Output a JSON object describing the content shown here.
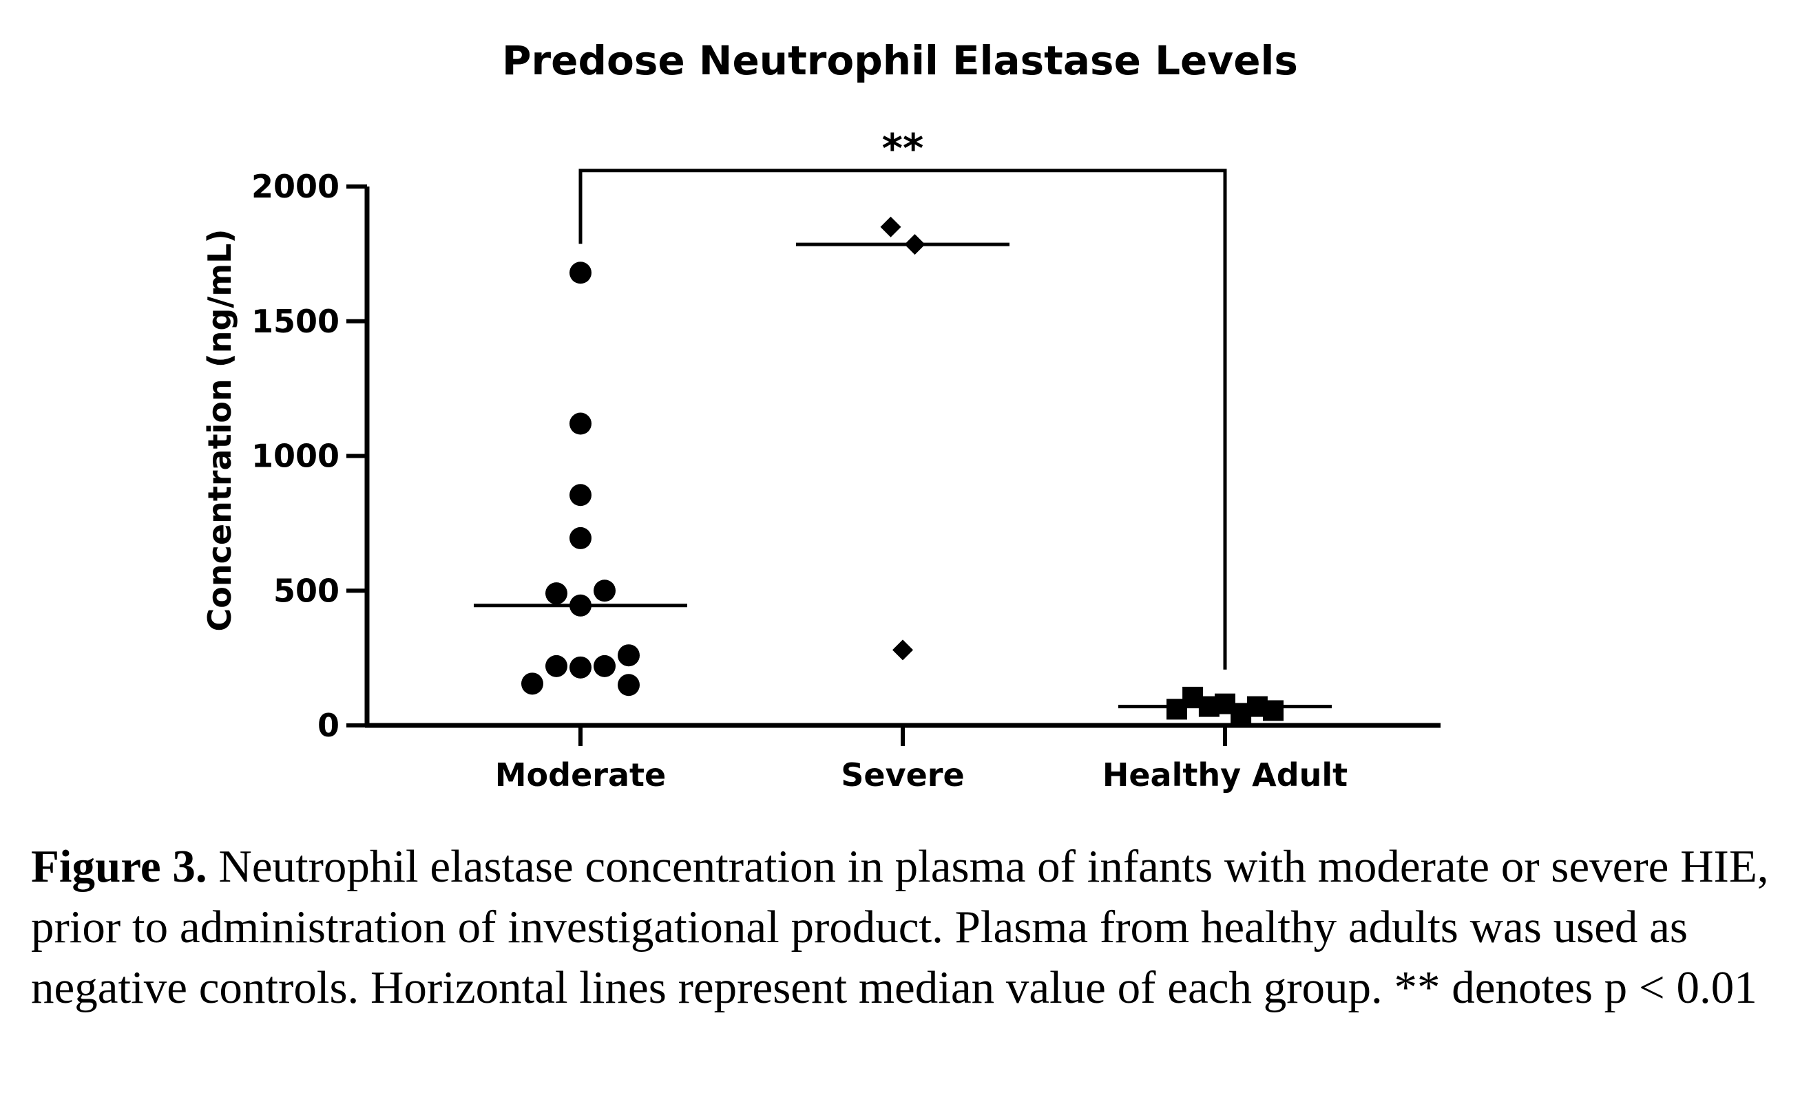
{
  "chart_data": {
    "type": "scatter",
    "title": "Predose Neutrophil Elastase  Levels",
    "ylabel": "Concentration (ng/mL)",
    "xlabel": "",
    "ylim": [
      0,
      2000
    ],
    "yticks": [
      0,
      500,
      1000,
      1500,
      2000
    ],
    "categories": [
      "Moderate",
      "Severe",
      "Healthy Adult"
    ],
    "groups": [
      {
        "category": "Moderate",
        "marker": "circle",
        "median": 445,
        "points": [
          {
            "offset": 0,
            "y": 1680
          },
          {
            "offset": 0,
            "y": 1120
          },
          {
            "offset": 0,
            "y": 855
          },
          {
            "offset": 0,
            "y": 695
          },
          {
            "offset": -0.5,
            "y": 490
          },
          {
            "offset": 0.5,
            "y": 500
          },
          {
            "offset": 0,
            "y": 445
          },
          {
            "offset": -0.5,
            "y": 220
          },
          {
            "offset": 0,
            "y": 215
          },
          {
            "offset": 0.5,
            "y": 220
          },
          {
            "offset": -1,
            "y": 155
          },
          {
            "offset": 1,
            "y": 260
          },
          {
            "offset": 1,
            "y": 150
          }
        ]
      },
      {
        "category": "Severe",
        "marker": "diamond",
        "median": 1785,
        "points": [
          {
            "offset": -0.25,
            "y": 1850
          },
          {
            "offset": 0.25,
            "y": 1785
          },
          {
            "offset": 0,
            "y": 280
          }
        ]
      },
      {
        "category": "Healthy Adult",
        "marker": "square",
        "median": 70,
        "points": [
          {
            "offset": -1,
            "y": 60
          },
          {
            "offset": -0.67,
            "y": 105
          },
          {
            "offset": -0.33,
            "y": 70
          },
          {
            "offset": 0,
            "y": 80
          },
          {
            "offset": 0.33,
            "y": 45
          },
          {
            "offset": 0.67,
            "y": 70
          },
          {
            "offset": 1,
            "y": 55
          }
        ]
      }
    ],
    "significance": {
      "from": "Moderate",
      "to": "Healthy Adult",
      "label": "**"
    },
    "grid": false,
    "legend": "none",
    "color": "#000000"
  },
  "caption": {
    "label": "Figure 3.",
    "text": " Neutrophil elastase concentration in plasma of infants with moderate or severe HIE, prior to administration of investigational product. Plasma from healthy adults was used as negative controls. Horizontal lines represent median value of each group. ** denotes p < 0.01"
  }
}
